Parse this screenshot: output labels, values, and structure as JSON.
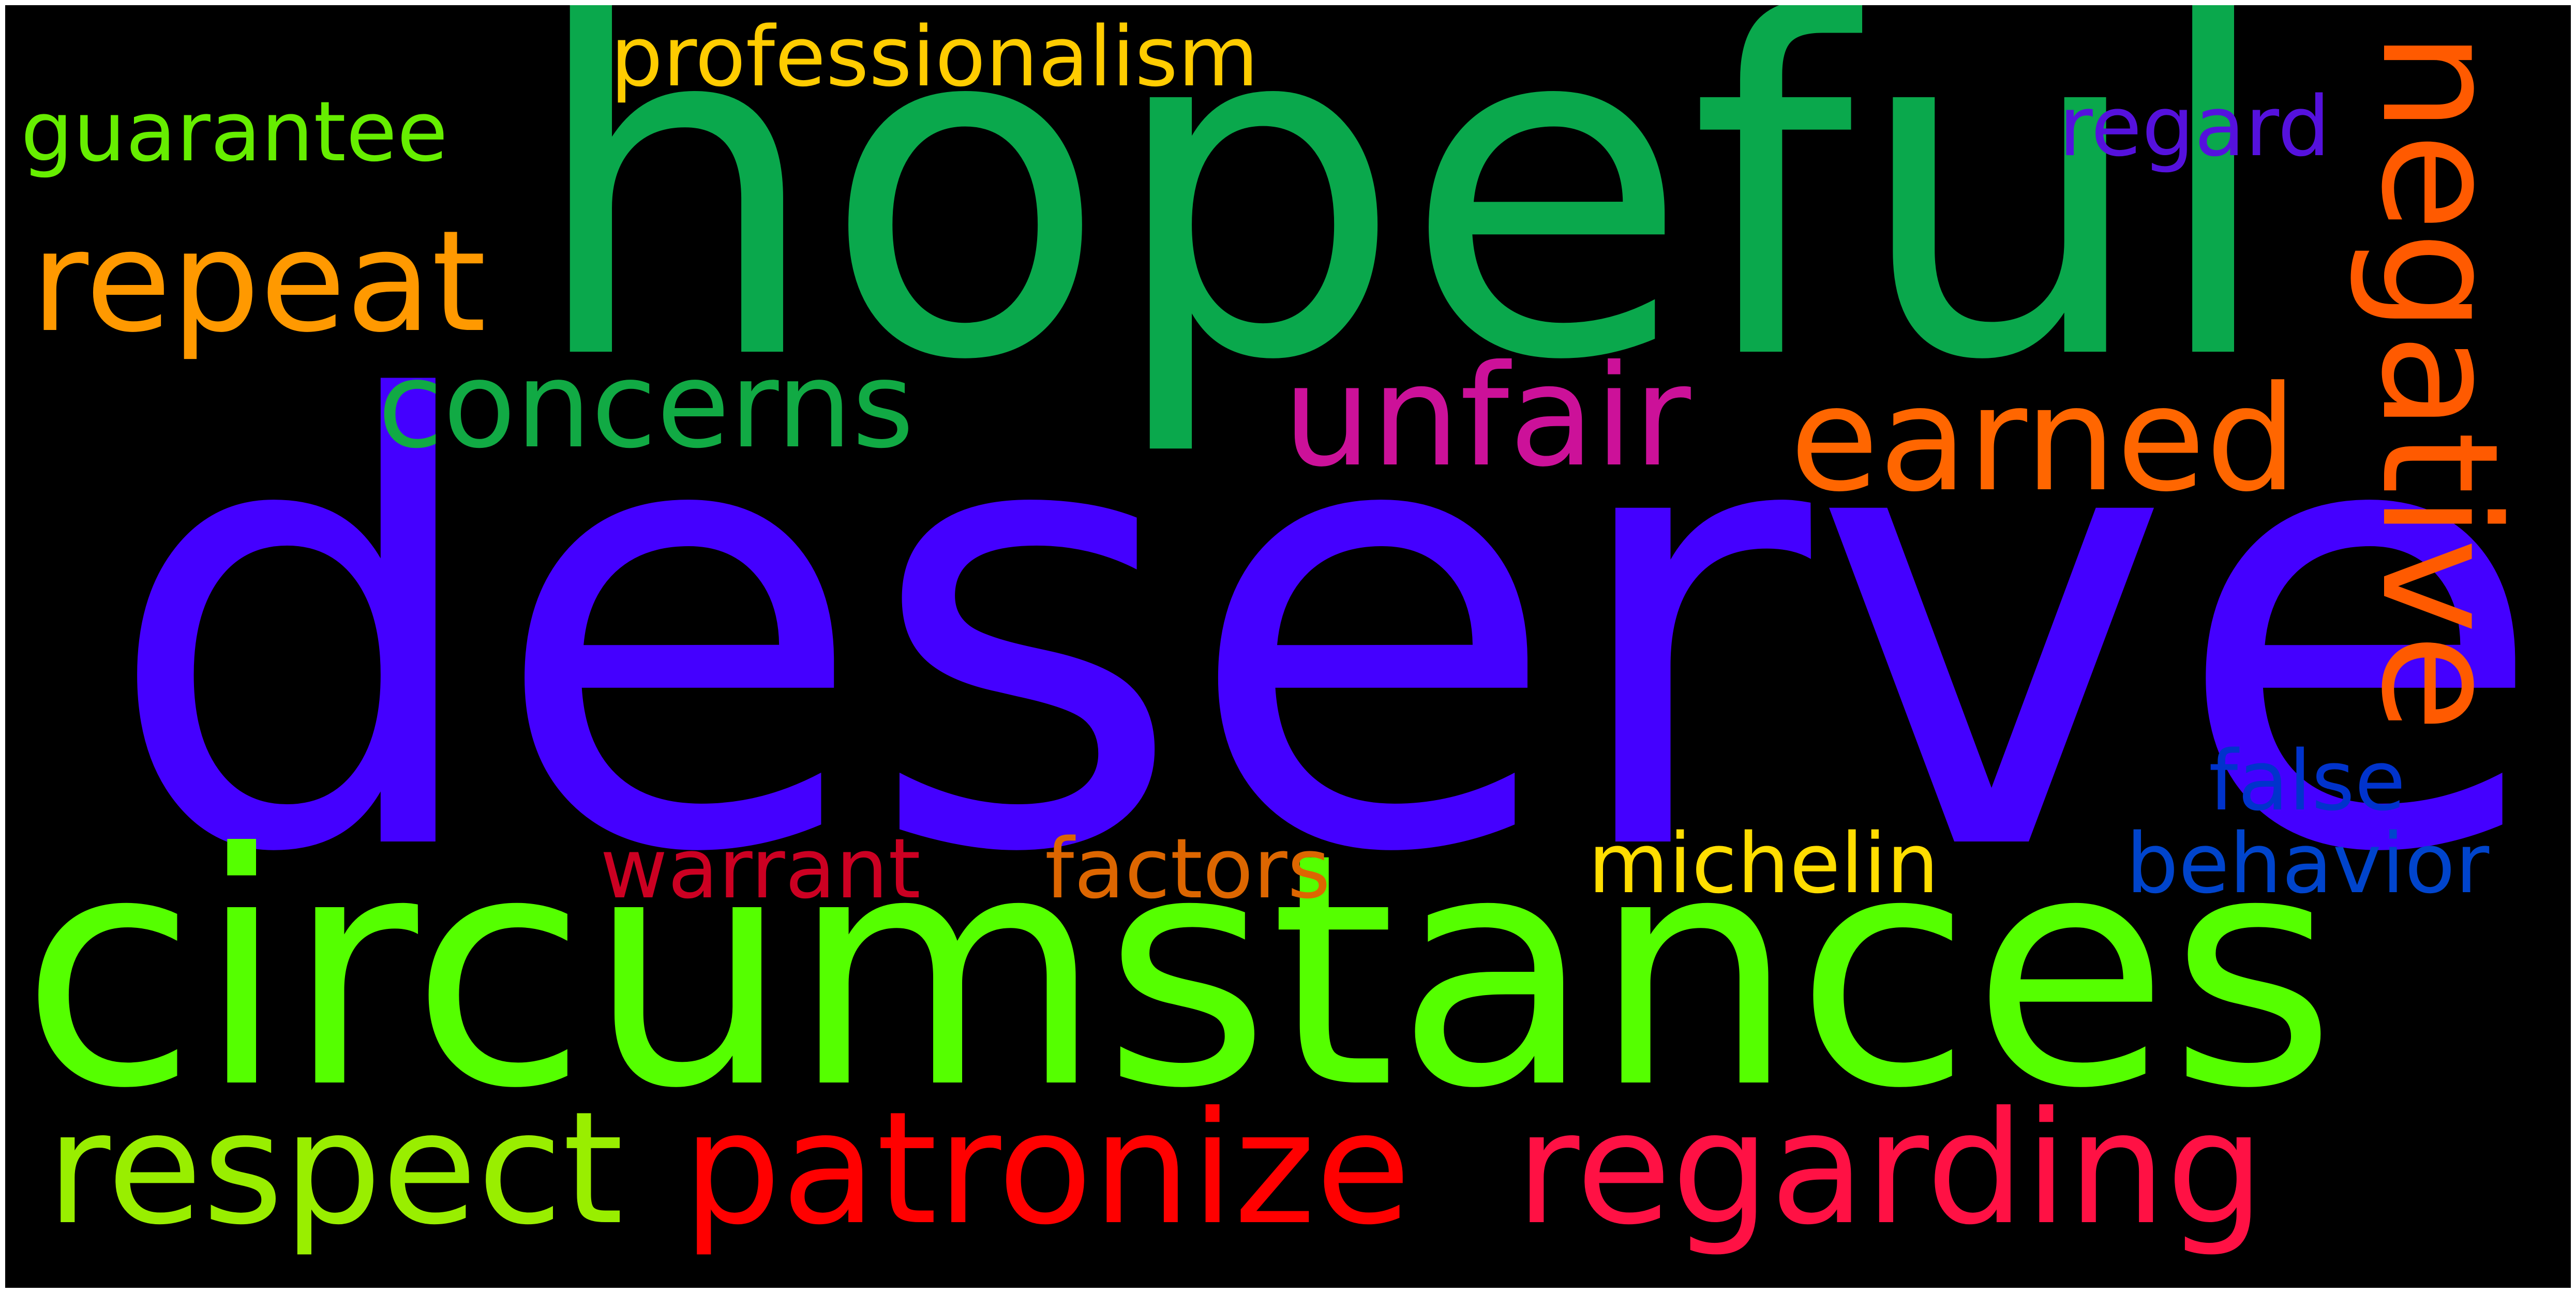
{
  "background": "#000000",
  "words": [
    {
      "id": "deserve",
      "text": "deserve",
      "color": "#4400ff"
    },
    {
      "id": "hopeful",
      "text": "hopeful",
      "color": "#0aa84c"
    },
    {
      "id": "circumstances",
      "text": "circumstances",
      "color": "#55ff00"
    },
    {
      "id": "negative",
      "text": "negative",
      "color": "#ff5a00"
    },
    {
      "id": "patronize",
      "text": "patronize",
      "color": "#ff0000"
    },
    {
      "id": "regarding",
      "text": "regarding",
      "color": "#ff1144"
    },
    {
      "id": "respect",
      "text": "respect",
      "color": "#99ee00"
    },
    {
      "id": "repeat",
      "text": "repeat",
      "color": "#ff9900"
    },
    {
      "id": "concerns",
      "text": "concerns",
      "color": "#11aa44"
    },
    {
      "id": "unfair",
      "text": "unfair",
      "color": "#cc1199"
    },
    {
      "id": "earned",
      "text": "earned",
      "color": "#ff6600"
    },
    {
      "id": "professionalism",
      "text": "professionalism",
      "color": "#ffcc00"
    },
    {
      "id": "guarantee",
      "text": "guarantee",
      "color": "#66ee00"
    },
    {
      "id": "regard",
      "text": "regard",
      "color": "#5511dd"
    },
    {
      "id": "false",
      "text": "false",
      "color": "#0033cc"
    },
    {
      "id": "behavior",
      "text": "behavior",
      "color": "#0044cc"
    },
    {
      "id": "michelin",
      "text": "michelin",
      "color": "#ffdd00"
    },
    {
      "id": "factors",
      "text": "factors",
      "color": "#dd6600"
    },
    {
      "id": "warrant",
      "text": "warrant",
      "color": "#cc0022"
    }
  ]
}
